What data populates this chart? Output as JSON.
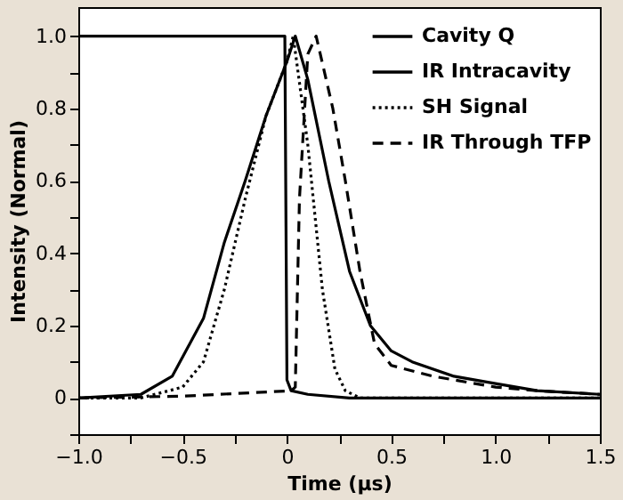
{
  "chart_data": {
    "type": "line",
    "xlabel": "Time (μs)",
    "ylabel": "Intensity (Normal)",
    "xlim": [
      -1.0,
      1.5
    ],
    "ylim": [
      -0.1,
      1.08
    ],
    "xticks": [
      {
        "value": -1.0,
        "label": "−1.0"
      },
      {
        "value": -0.75,
        "label": null
      },
      {
        "value": -0.5,
        "label": "−0.5"
      },
      {
        "value": -0.25,
        "label": null
      },
      0,
      {
        "value": 0.25,
        "label": null
      },
      0.5,
      {
        "value": 0.75,
        "label": null
      },
      {
        "value": 1.0,
        "label": "1.0"
      },
      {
        "value": 1.25,
        "label": null
      },
      1.5
    ],
    "yticks": [
      {
        "value": -0.1,
        "label": null
      },
      0,
      {
        "value": 0.1,
        "label": null
      },
      0.2,
      {
        "value": 0.3,
        "label": null
      },
      0.4,
      {
        "value": 0.5,
        "label": null
      },
      0.6,
      {
        "value": 0.7,
        "label": null
      },
      0.8,
      {
        "value": 0.9,
        "label": null
      },
      {
        "value": 1.0,
        "label": "1.0"
      }
    ],
    "grid": false,
    "legend": "top right",
    "marker": "none",
    "series": [
      {
        "name": "Cavity Q",
        "color": "#000000",
        "line_style": "solid",
        "x": [
          -1.0,
          -0.01,
          0.0,
          0.02,
          0.1,
          0.3,
          1.5
        ],
        "values": [
          1.0,
          1.0,
          0.05,
          0.02,
          0.01,
          0.0,
          0.0
        ]
      },
      {
        "name": "IR Intracavity",
        "color": "#000000",
        "line_style": "solid",
        "x": [
          -1.0,
          -0.7,
          -0.55,
          -0.4,
          -0.3,
          -0.2,
          -0.1,
          0.0,
          0.04,
          0.1,
          0.2,
          0.3,
          0.4,
          0.5,
          0.6,
          0.8,
          1.0,
          1.2,
          1.5
        ],
        "values": [
          0.0,
          0.01,
          0.06,
          0.22,
          0.43,
          0.6,
          0.78,
          0.93,
          1.0,
          0.88,
          0.6,
          0.35,
          0.2,
          0.13,
          0.1,
          0.06,
          0.04,
          0.02,
          0.01
        ]
      },
      {
        "name": "SH Signal",
        "color": "#000000",
        "line_style": "dotted",
        "x": [
          -1.0,
          -0.7,
          -0.5,
          -0.4,
          -0.3,
          -0.2,
          -0.1,
          0.0,
          0.03,
          0.1,
          0.17,
          0.23,
          0.28,
          0.35,
          1.5
        ],
        "values": [
          0.0,
          0.0,
          0.03,
          0.1,
          0.3,
          0.55,
          0.78,
          0.93,
          1.0,
          0.7,
          0.3,
          0.08,
          0.02,
          0.0,
          0.0
        ]
      },
      {
        "name": "IR Through TFP",
        "color": "#000000",
        "line_style": "dashed",
        "x": [
          -1.0,
          -0.5,
          0.02,
          0.04,
          0.06,
          0.1,
          0.14,
          0.22,
          0.28,
          0.35,
          0.42,
          0.5,
          0.7,
          1.0,
          1.2,
          1.5
        ],
        "values": [
          0.0,
          0.005,
          0.02,
          0.03,
          0.55,
          0.95,
          1.0,
          0.8,
          0.6,
          0.35,
          0.15,
          0.09,
          0.06,
          0.03,
          0.02,
          0.01
        ]
      }
    ]
  }
}
